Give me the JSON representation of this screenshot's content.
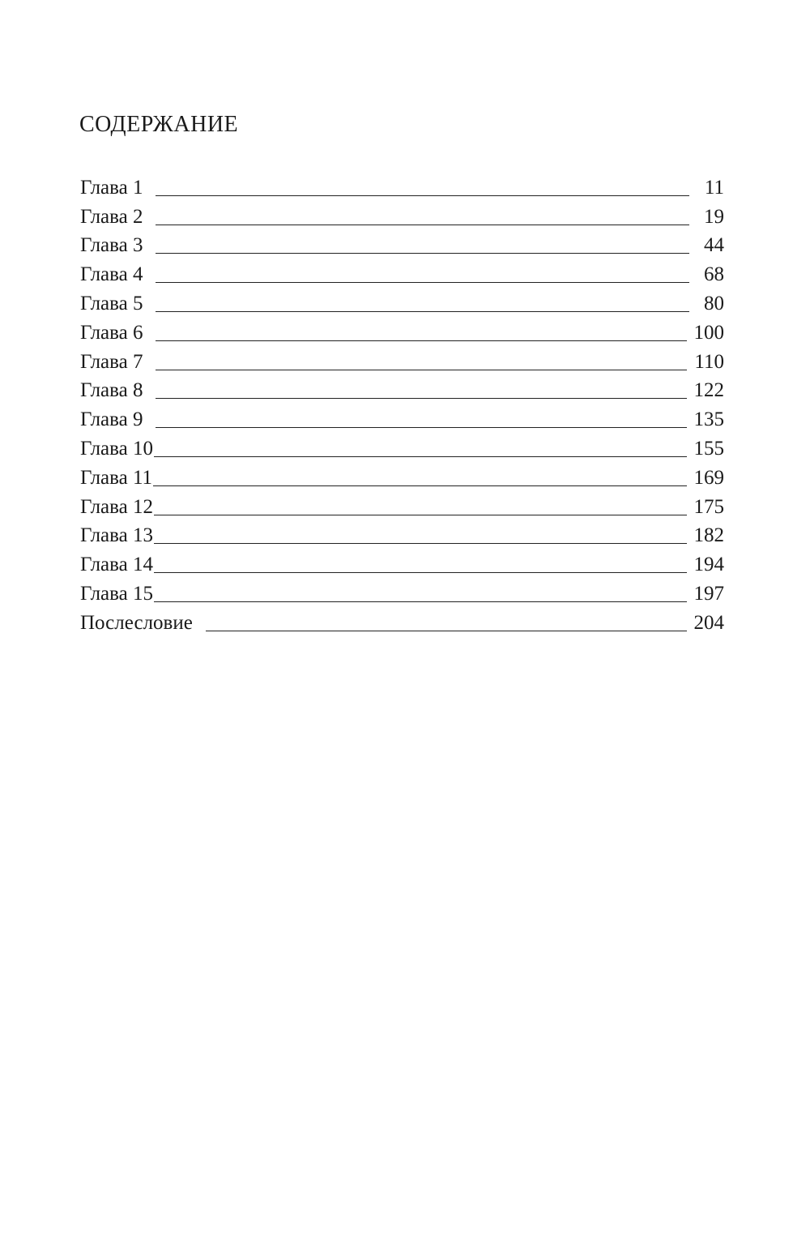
{
  "title": "СОДЕРЖАНИЕ",
  "entries": [
    {
      "label": "Глава 1",
      "page": "11"
    },
    {
      "label": "Глава 2",
      "page": "19"
    },
    {
      "label": "Глава 3",
      "page": "44"
    },
    {
      "label": "Глава 4",
      "page": "68"
    },
    {
      "label": "Глава 5",
      "page": "80"
    },
    {
      "label": "Глава 6",
      "page": "100"
    },
    {
      "label": "Глава 7",
      "page": "110"
    },
    {
      "label": "Глава 8",
      "page": "122"
    },
    {
      "label": "Глава 9",
      "page": "135"
    },
    {
      "label": "Глава 10",
      "page": "155"
    },
    {
      "label": "Глава 11",
      "page": "169"
    },
    {
      "label": "Глава 12",
      "page": "175"
    },
    {
      "label": "Глава 13",
      "page": "182"
    },
    {
      "label": "Глава 14",
      "page": "194"
    },
    {
      "label": "Глава 15",
      "page": "197"
    },
    {
      "label": "Послесловие",
      "page": "204"
    }
  ]
}
